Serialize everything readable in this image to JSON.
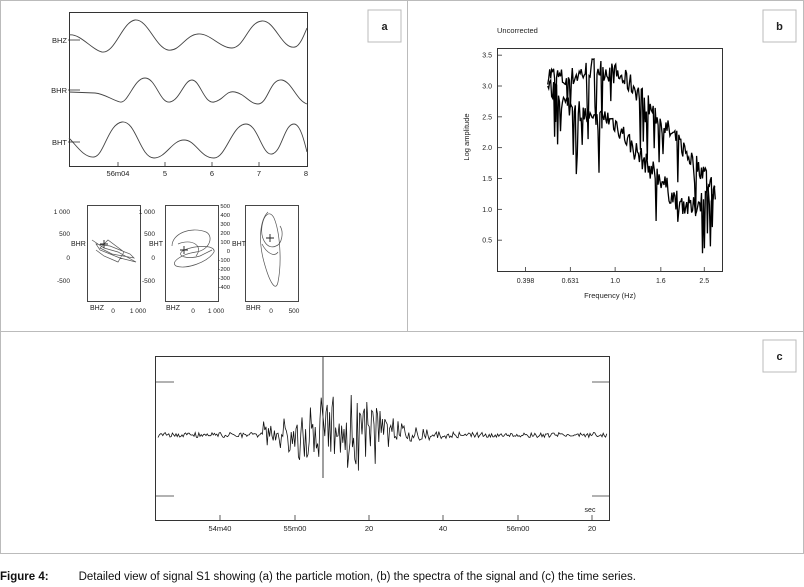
{
  "figure": {
    "caption_label": "Figure 4:",
    "caption_text": "Detailed view of signal S1 showing (a) the particle motion, (b) the spectra of the signal and (c) the time series."
  },
  "panel_a": {
    "tag": "a",
    "traces": [
      "BHZ",
      "BHR",
      "BHT"
    ],
    "time_ticks": [
      "56m04",
      "5",
      "6",
      "7",
      "8"
    ],
    "particle_plots": [
      {
        "ylabel": "BHR",
        "xlabel": "BHZ",
        "yticks": [
          "1 000",
          "500",
          "0",
          "-500"
        ],
        "xticks": [
          "0",
          "1 000"
        ]
      },
      {
        "ylabel": "BHT",
        "xlabel": "BHZ",
        "yticks": [
          "1 000",
          "500",
          "0",
          "-500"
        ],
        "xticks": [
          "0",
          "1 000"
        ]
      },
      {
        "ylabel": "BHT",
        "xlabel": "BHR",
        "yticks": [
          "500",
          "400",
          "300",
          "200",
          "100",
          "0",
          "-100",
          "-200",
          "-300",
          "-400"
        ],
        "xticks": [
          "0",
          "500"
        ]
      }
    ]
  },
  "panel_b": {
    "tag": "b",
    "chart_data": {
      "type": "line",
      "title": "Uncorrected",
      "xlabel": "Frequency (Hz)",
      "ylabel": "Log amplitude",
      "x_scale": "log",
      "xticks": [
        "0.398",
        "0.631",
        "1.0",
        "1.6",
        "2.5"
      ],
      "yticks": [
        "0.5",
        "1.0",
        "1.5",
        "2.0",
        "2.5",
        "3.0",
        "3.5"
      ],
      "xlim": [
        0.3,
        3.0
      ],
      "ylim": [
        0.0,
        3.6
      ],
      "series": [
        {
          "x": [
            0.5,
            0.6,
            0.7,
            0.8,
            0.9,
            1.0,
            1.1,
            1.2,
            1.4,
            1.6,
            1.8,
            2.0,
            2.2,
            2.5,
            2.8
          ],
          "y": [
            3.2,
            3.1,
            3.2,
            3.3,
            3.25,
            3.2,
            3.1,
            3.0,
            2.7,
            2.4,
            2.2,
            2.0,
            1.8,
            1.6,
            1.3
          ]
        },
        {
          "x": [
            0.5,
            0.6,
            0.7,
            0.8,
            0.9,
            1.0,
            1.1,
            1.2,
            1.4,
            1.6,
            1.8,
            2.0,
            2.2,
            2.5,
            2.8
          ],
          "y": [
            3.0,
            2.7,
            2.6,
            2.4,
            2.5,
            2.4,
            2.2,
            2.0,
            1.7,
            1.5,
            1.2,
            1.1,
            1.0,
            1.2,
            1.3
          ]
        }
      ]
    }
  },
  "panel_c": {
    "tag": "c",
    "unit": "sec",
    "time_ticks": [
      "54m40",
      "55m00",
      "20",
      "40",
      "56m00",
      "20"
    ]
  }
}
